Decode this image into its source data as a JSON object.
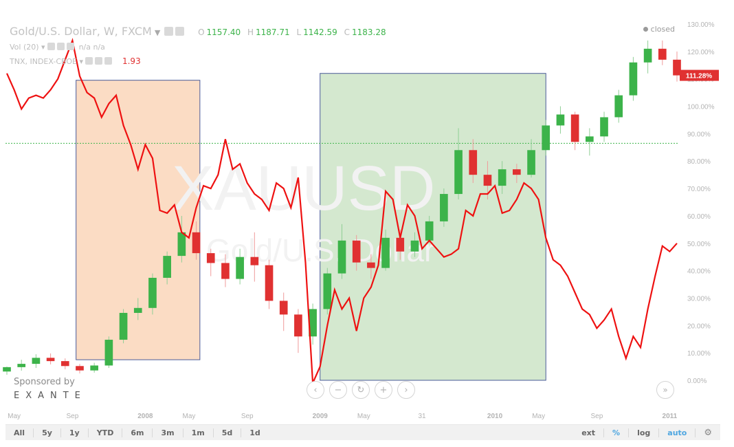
{
  "header": {
    "symbol": "Gold/U.S. Dollar, W, FXCM",
    "ohlc": [
      {
        "key": "O",
        "value": "1157.40"
      },
      {
        "key": "H",
        "value": "1187.71"
      },
      {
        "key": "L",
        "value": "1142.59"
      },
      {
        "key": "C",
        "value": "1183.28"
      }
    ],
    "vol_label": "Vol (20)",
    "vol_values": "n/a  n/a",
    "tnx_label": "TNX, INDEX-CBOE",
    "tnx_value": "1.93",
    "status": "closed"
  },
  "watermark": {
    "line1": "XAUUSD",
    "line2": "Gold/U.S. Dollar"
  },
  "sponsor": {
    "line1": "Sponsored by",
    "line2": "EXANTE"
  },
  "toolbar": {
    "ranges": [
      "All",
      "5y",
      "1y",
      "YTD",
      "6m",
      "3m",
      "1m",
      "5d",
      "1d"
    ],
    "options": [
      "ext",
      "%",
      "log",
      "auto"
    ],
    "settings_icon": "gear-icon"
  },
  "colors": {
    "up": "#3cb34a",
    "down": "#e03131",
    "tnx_line": "#ee1111",
    "orange_zone": "#fbdcc4",
    "green_zone": "#d4e8cf",
    "zone_border": "#4a5a98",
    "reference_line": "#3cb34a"
  },
  "chart_data": {
    "type": "line",
    "x_axis_labels": [
      "May",
      "Sep",
      "2008",
      "May",
      "Sep",
      "2009",
      "May",
      "31",
      "2010",
      "May",
      "Sep",
      "2011"
    ],
    "x_axis_positions": [
      0.5,
      4.5,
      9.5,
      12.5,
      16.5,
      21.5,
      24.5,
      28.5,
      33.5,
      36.5,
      40.5,
      45.5
    ],
    "y_axis": {
      "ticks": [
        0,
        10,
        20,
        30,
        40,
        50,
        60,
        70,
        80,
        90,
        100,
        110,
        120,
        130
      ],
      "unit": "%",
      "range": [
        -5,
        135
      ]
    },
    "last_value_label": "111.28%",
    "last_value": 111.28,
    "reference_line_value": 86.5,
    "zones": [
      {
        "type": "orange",
        "from_x": 4.75,
        "to_x": 13.25,
        "top": 109.5,
        "bottom": 7.5
      },
      {
        "type": "green",
        "from_x": 21.5,
        "to_x": 37,
        "top": 112,
        "bottom": 0
      }
    ],
    "series": [
      {
        "kind": "candlestick",
        "candles": [
          [
            0.0,
            3.2,
            4.8,
            2.0,
            5.0
          ],
          [
            1.0,
            4.8,
            6.0,
            3.5,
            7.5
          ],
          [
            2.0,
            6.0,
            8.2,
            4.5,
            9.5
          ],
          [
            3.0,
            8.2,
            7.0,
            5.8,
            9.8
          ],
          [
            4.0,
            7.0,
            5.2,
            4.0,
            8.0
          ],
          [
            5.0,
            5.2,
            3.6,
            2.5,
            6.0
          ],
          [
            6.0,
            3.6,
            5.4,
            2.8,
            6.4
          ],
          [
            7.0,
            5.4,
            14.8,
            4.5,
            16.0
          ],
          [
            8.0,
            14.8,
            24.6,
            13.5,
            26.0
          ],
          [
            9.0,
            24.6,
            26.4,
            22.0,
            30.0
          ],
          [
            10.0,
            26.4,
            37.4,
            24.0,
            39.0
          ],
          [
            11.0,
            37.4,
            45.4,
            35.0,
            47.0
          ],
          [
            12.0,
            45.4,
            54.0,
            43.0,
            60.0
          ],
          [
            13.0,
            54.0,
            46.4,
            44.0,
            58.0
          ],
          [
            14.0,
            46.4,
            42.8,
            38.0,
            48.0
          ],
          [
            15.0,
            42.8,
            37.0,
            34.0,
            46.0
          ],
          [
            16.0,
            37.0,
            45.0,
            35.0,
            48.0
          ],
          [
            17.0,
            45.0,
            42.0,
            36.0,
            54.0
          ],
          [
            18.0,
            42.0,
            29.0,
            26.0,
            44.0
          ],
          [
            19.0,
            29.0,
            24.0,
            18.0,
            32.0
          ],
          [
            20.0,
            24.0,
            16.0,
            10.0,
            26.0
          ],
          [
            21.0,
            16.0,
            26.0,
            13.0,
            28.0
          ],
          [
            22.0,
            26.0,
            39.0,
            24.0,
            41.0
          ],
          [
            23.0,
            39.0,
            51.0,
            37.0,
            57.0
          ],
          [
            24.0,
            51.0,
            43.0,
            40.0,
            53.0
          ],
          [
            25.0,
            43.0,
            41.0,
            37.0,
            46.0
          ],
          [
            26.0,
            41.0,
            52.0,
            40.0,
            55.0
          ],
          [
            27.0,
            52.0,
            47.0,
            44.0,
            55.0
          ],
          [
            28.0,
            47.0,
            51.0,
            45.0,
            54.0
          ],
          [
            29.0,
            51.0,
            58.0,
            50.0,
            60.0
          ],
          [
            30.0,
            58.0,
            68.0,
            56.0,
            70.0
          ],
          [
            31.0,
            68.0,
            84.0,
            66.0,
            92.0
          ],
          [
            32.0,
            84.0,
            75.0,
            72.0,
            88.0
          ],
          [
            33.0,
            75.0,
            71.0,
            66.0,
            80.0
          ],
          [
            34.0,
            71.0,
            77.0,
            68.0,
            80.0
          ],
          [
            35.0,
            77.0,
            75.0,
            72.0,
            79.0
          ],
          [
            36.0,
            75.0,
            84.0,
            74.0,
            88.0
          ],
          [
            37.0,
            84.0,
            93.0,
            82.0,
            95.0
          ],
          [
            38.0,
            93.0,
            97.0,
            90.0,
            100.0
          ],
          [
            39.0,
            97.0,
            87.0,
            84.0,
            98.0
          ],
          [
            40.0,
            87.0,
            89.0,
            82.0,
            92.0
          ],
          [
            41.0,
            89.0,
            96.0,
            87.0,
            98.0
          ],
          [
            42.0,
            96.0,
            104.0,
            94.0,
            106.0
          ],
          [
            43.0,
            104.0,
            116.0,
            102.0,
            118.0
          ],
          [
            44.0,
            116.0,
            121.0,
            112.0,
            124.0
          ],
          [
            45.0,
            121.0,
            117.0,
            115.0,
            124.0
          ],
          [
            46.0,
            117.0,
            111.28,
            109.0,
            120.0
          ]
        ]
      },
      {
        "name": "TNX, INDEX-CBOE",
        "kind": "line",
        "points": [
          [
            0.0,
            112
          ],
          [
            0.5,
            106
          ],
          [
            1.0,
            99
          ],
          [
            1.5,
            103
          ],
          [
            2.0,
            104
          ],
          [
            2.5,
            103
          ],
          [
            3.0,
            106
          ],
          [
            3.5,
            110
          ],
          [
            4.0,
            117
          ],
          [
            4.5,
            124
          ],
          [
            5.0,
            111
          ],
          [
            5.5,
            105
          ],
          [
            6.0,
            103
          ],
          [
            6.5,
            96
          ],
          [
            7.0,
            101
          ],
          [
            7.5,
            104
          ],
          [
            8.0,
            93
          ],
          [
            8.5,
            86
          ],
          [
            9.0,
            77
          ],
          [
            9.5,
            86
          ],
          [
            10.0,
            81
          ],
          [
            10.5,
            62
          ],
          [
            11.0,
            61
          ],
          [
            11.5,
            64
          ],
          [
            12.0,
            54
          ],
          [
            12.5,
            52
          ],
          [
            13.0,
            63
          ],
          [
            13.5,
            71
          ],
          [
            14.0,
            70
          ],
          [
            14.5,
            75
          ],
          [
            15.0,
            88
          ],
          [
            15.5,
            77
          ],
          [
            16.0,
            79
          ],
          [
            16.5,
            72
          ],
          [
            17.0,
            68
          ],
          [
            17.5,
            66
          ],
          [
            18.0,
            62
          ],
          [
            18.5,
            72
          ],
          [
            19.0,
            70
          ],
          [
            19.5,
            63
          ],
          [
            20.0,
            74
          ],
          [
            20.5,
            43
          ],
          [
            21.0,
            -1
          ],
          [
            21.5,
            5
          ],
          [
            22.0,
            20
          ],
          [
            22.5,
            33
          ],
          [
            23.0,
            26
          ],
          [
            23.5,
            30
          ],
          [
            24.0,
            18
          ],
          [
            24.5,
            30
          ],
          [
            25.0,
            34
          ],
          [
            25.5,
            42
          ],
          [
            26.0,
            69
          ],
          [
            26.5,
            66
          ],
          [
            27.0,
            52
          ],
          [
            27.5,
            64
          ],
          [
            28.0,
            60
          ],
          [
            28.5,
            48
          ],
          [
            29.0,
            51
          ],
          [
            29.5,
            48
          ],
          [
            30.0,
            45
          ],
          [
            30.5,
            46
          ],
          [
            31.0,
            48
          ],
          [
            31.5,
            62
          ],
          [
            32.0,
            60
          ],
          [
            32.5,
            68
          ],
          [
            33.0,
            68
          ],
          [
            33.5,
            71
          ],
          [
            34.0,
            61
          ],
          [
            34.5,
            62
          ],
          [
            35.0,
            66
          ],
          [
            35.5,
            72
          ],
          [
            36.0,
            70
          ],
          [
            36.5,
            66
          ],
          [
            37.0,
            52
          ],
          [
            37.5,
            44
          ],
          [
            38.0,
            42
          ],
          [
            38.5,
            38
          ],
          [
            39.0,
            32
          ],
          [
            39.5,
            26
          ],
          [
            40.0,
            24
          ],
          [
            40.5,
            19
          ],
          [
            41.0,
            22
          ],
          [
            41.5,
            26
          ],
          [
            42.0,
            16
          ],
          [
            42.5,
            8
          ],
          [
            43.0,
            16
          ],
          [
            43.5,
            12
          ],
          [
            44.0,
            26
          ],
          [
            44.5,
            38
          ],
          [
            45.0,
            49
          ],
          [
            45.5,
            47
          ],
          [
            46.0,
            50
          ]
        ]
      }
    ]
  }
}
